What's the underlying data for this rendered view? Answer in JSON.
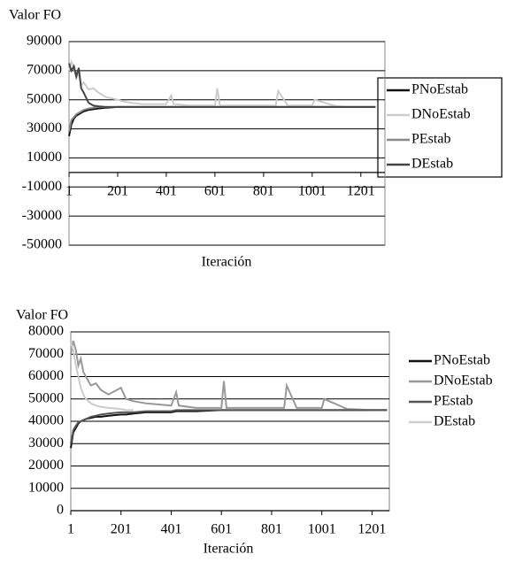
{
  "chart_data": [
    {
      "type": "line",
      "y_label": "Valor FO",
      "x_label": "Iteración",
      "x": [
        1,
        11,
        21,
        31,
        41,
        51,
        61,
        81,
        101,
        121,
        151,
        201,
        221,
        251,
        301,
        401,
        421,
        431,
        501,
        601,
        611,
        621,
        701,
        801,
        851,
        861,
        901,
        1001,
        1011,
        1101,
        1201,
        1261
      ],
      "xlim": [
        1,
        1300
      ],
      "xticks": [
        1,
        201,
        401,
        601,
        801,
        1001,
        1201
      ],
      "ylim": [
        -50000,
        90000
      ],
      "yticks": [
        -50000,
        -30000,
        -10000,
        10000,
        30000,
        50000,
        70000,
        90000
      ],
      "grid": true,
      "legend": "right",
      "series": [
        {
          "name": "PNoEstab",
          "color": "#111111",
          "values": [
            25000,
            33000,
            37000,
            39000,
            40000,
            41000,
            42000,
            43000,
            43500,
            44000,
            44500,
            45000,
            45000,
            45000,
            45000,
            45000,
            45000,
            45000,
            45000,
            45000,
            45000,
            45000,
            45000,
            45000,
            45000,
            45000,
            45000,
            45000,
            45000,
            45000,
            45000,
            45000
          ]
        },
        {
          "name": "DNoEstab",
          "color": "#cccccc",
          "values": [
            70000,
            76000,
            72000,
            65000,
            68000,
            60000,
            62000,
            57000,
            58000,
            55000,
            52000,
            50000,
            49000,
            48000,
            47000,
            47000,
            53000,
            47000,
            46000,
            46000,
            58000,
            46000,
            46000,
            46000,
            46000,
            56000,
            46000,
            46000,
            50000,
            45500,
            45000,
            45000
          ]
        },
        {
          "name": "PEstab",
          "color": "#888888",
          "values": [
            28000,
            36000,
            38000,
            40000,
            41000,
            42000,
            43000,
            44000,
            44500,
            45000,
            45000,
            45000,
            45000,
            45000,
            45000,
            45000,
            45000,
            45000,
            45000,
            45000,
            45000,
            45000,
            45000,
            45000,
            45000,
            45000,
            45000,
            45000,
            45000,
            45000,
            45000,
            45000
          ]
        },
        {
          "name": "DEstab",
          "color": "#444444",
          "values": [
            75000,
            70000,
            73000,
            66000,
            72000,
            58000,
            55000,
            48000,
            46000,
            45500,
            45000,
            45000,
            45000,
            45000,
            45000,
            45000,
            45000,
            45000,
            45000,
            45000,
            45000,
            45000,
            45000,
            45000,
            45000,
            45000,
            45000,
            45000,
            45000,
            45000,
            45000,
            45000
          ]
        }
      ]
    },
    {
      "type": "line",
      "y_label": "Valor FO",
      "x_label": "Iteración",
      "x": [
        1,
        11,
        21,
        31,
        41,
        51,
        61,
        81,
        101,
        121,
        151,
        201,
        221,
        251,
        301,
        401,
        421,
        431,
        501,
        601,
        611,
        621,
        701,
        801,
        851,
        861,
        901,
        1001,
        1011,
        1101,
        1201,
        1261
      ],
      "xlim": [
        1,
        1270
      ],
      "xticks": [
        1,
        201,
        401,
        601,
        801,
        1001,
        1201
      ],
      "ylim": [
        0,
        80000
      ],
      "yticks": [
        0,
        10000,
        20000,
        30000,
        40000,
        50000,
        60000,
        70000,
        80000
      ],
      "grid": true,
      "legend": "right",
      "series": [
        {
          "name": "PNoEstab",
          "color": "#111111",
          "values": [
            28000,
            35000,
            37000,
            39000,
            40000,
            40500,
            41000,
            41500,
            42000,
            42000,
            42500,
            43000,
            43000,
            43500,
            44000,
            44000,
            44500,
            44500,
            44500,
            45000,
            45000,
            45000,
            45000,
            45000,
            45000,
            45000,
            45000,
            45000,
            45000,
            45000,
            45000,
            45000
          ]
        },
        {
          "name": "DNoEstab",
          "color": "#999999",
          "values": [
            70000,
            76000,
            72000,
            65000,
            68000,
            62000,
            60000,
            56000,
            57000,
            54000,
            52000,
            55000,
            50000,
            49000,
            48000,
            47000,
            53000,
            47000,
            46000,
            46000,
            58000,
            46000,
            46000,
            46000,
            46000,
            56000,
            46000,
            46000,
            50000,
            45500,
            45000,
            45000
          ]
        },
        {
          "name": "PEstab",
          "color": "#555555",
          "values": [
            30000,
            36000,
            38000,
            39500,
            40000,
            40500,
            41000,
            42000,
            42500,
            43000,
            43500,
            44000,
            44000,
            44000,
            44500,
            44500,
            45000,
            45000,
            45000,
            45000,
            45000,
            45000,
            45000,
            45000,
            45000,
            45000,
            45000,
            45000,
            45000,
            45000,
            45000,
            45000
          ]
        },
        {
          "name": "DEstab",
          "color": "#cccccc",
          "values": [
            75000,
            72000,
            65000,
            60000,
            55000,
            52000,
            50000,
            48000,
            47000,
            46500,
            46000,
            45500,
            45000,
            45000,
            null,
            null,
            null,
            null,
            null,
            null,
            null,
            null,
            null,
            null,
            null,
            null,
            null,
            null,
            null,
            null,
            null,
            null
          ]
        }
      ]
    }
  ]
}
